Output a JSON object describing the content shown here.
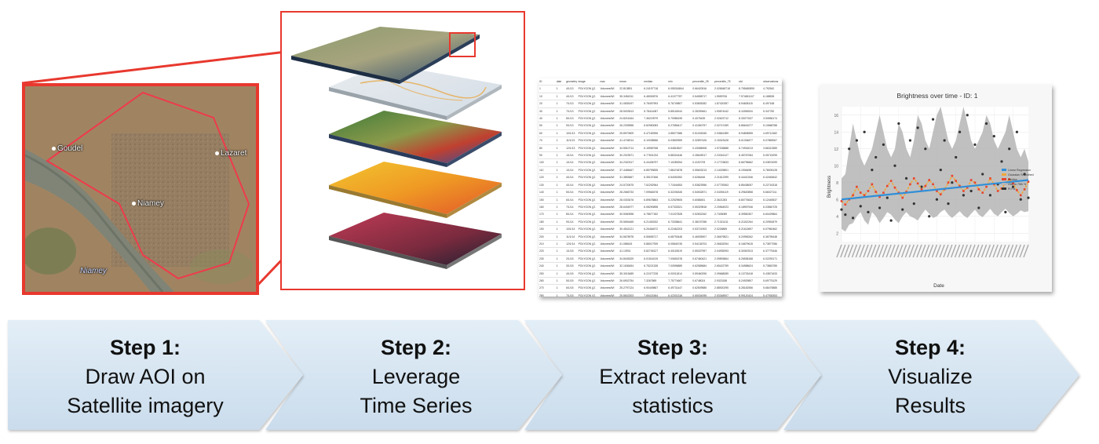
{
  "step1": {
    "map_labels": [
      "Goudel",
      "Lazaret",
      "Niamey",
      "Niamey"
    ],
    "title": "Step 1:",
    "line1": "Draw AOI on",
    "line2": "Satellite imagery"
  },
  "step2": {
    "title": "Step 2:",
    "line1": "Leverage",
    "line2": "Time Series"
  },
  "step3": {
    "title": "Step 3:",
    "line1": "Extract relevant",
    "line2": "statistics",
    "table": {
      "headers": [
        "ID",
        "date",
        "geometry",
        "image",
        "max",
        "mean",
        "median",
        "min",
        "percentile_25",
        "percentile_75",
        "std",
        "observations"
      ],
      "rows": [
        [
          "1",
          "1",
          "4/1/13",
          "POLYGON ((2.",
          "Volumes/Wi",
          "22.813891",
          "6.24197718",
          "6.055316844",
          "0.66420516",
          "2.026548718",
          "8.755480895",
          "4.792542"
        ],
        [
          "10",
          "1",
          "4/1/13",
          "POLYGON ((2.",
          "Volumes/Wi",
          "35.3454311",
          "6.48052876",
          "6.41077787",
          "0.54558717",
          "1.9559706",
          "7.974651107",
          "6.188535"
        ],
        [
          "20",
          "1",
          "7/1/13",
          "POLYGON ((2.",
          "Volumes/Wi",
          "31.0835197",
          "5.78497993",
          "5.76749807",
          "0.53805282",
          "1.87420357",
          "8.94608115",
          "6.497168"
        ],
        [
          "30",
          "1",
          "7/1/13",
          "POLYGON ((2.",
          "Volumes/Wi",
          "28.5003513",
          "5.78414087",
          "5.85116944",
          "0.28259461",
          "1.90874442",
          "8.11596534",
          "5.347782"
        ],
        [
          "40",
          "1",
          "8/1/13",
          "POLYGON ((2.",
          "Volumes/Wi",
          "24.8216164",
          "7.36219979",
          "5.70986195",
          "0.4075439",
          "2.02623712",
          "8.33077637",
          "3.50556174"
        ],
        [
          "50",
          "1",
          "9/1/13",
          "POLYGON ((2.",
          "Volumes/Wi",
          "26.2339558",
          "6.82960083",
          "6.27656417",
          "0.41060757",
          "2.02747459",
          "8.86616277",
          "5.10668788"
        ],
        [
          "60",
          "1",
          "10/1/13",
          "POLYGON ((2.",
          "Volumes/Wi",
          "25.8970509",
          "6.47169396",
          "4.88077686",
          "0.51026345",
          "2.03661389",
          "8.94808555",
          "4.69712482"
        ],
        [
          "70",
          "1",
          "11/1/13",
          "POLYGON ((2.",
          "Volumes/Wi",
          "41.4745014",
          "6.10038566",
          "6.03809359",
          "0.32897426",
          "2.15323428",
          "8.01334877",
          "5.07869067"
        ],
        [
          "80",
          "1",
          "12/1/13",
          "POLYGON ((2.",
          "Volumes/Wi",
          "34.5510714",
          "6.15969768",
          "6.54815547",
          "0.43086908",
          "1.97206888",
          "8.74916013",
          "3.86313389"
        ],
        [
          "90",
          "1",
          "1/1/14",
          "POLYGON ((2.",
          "Volumes/Wi",
          "30.2023571",
          "6.77601234",
          "5.88324446",
          "0.28649017",
          "2.23316127",
          "8.45767084",
          "5.05715295"
        ],
        [
          "100",
          "1",
          "1/1/14",
          "POLYGON ((2.",
          "Volumes/Wi",
          "34.2320317",
          "6.44436797",
          "7.10289254",
          "0.4157078",
          "2.17723833",
          "8.66795662",
          "5.03874099"
        ],
        [
          "110",
          "1",
          "1/1/14",
          "POLYGON ((2.",
          "Volumes/Wi",
          "37.4456467",
          "6.85799835",
          "7.88474878",
          "0.55603213",
          "2.14025801",
          "8.1906498",
          "5.78005128"
        ],
        [
          "120",
          "1",
          "4/1/14",
          "POLYGON ((2.",
          "Volumes/Wi",
          "31.3853667",
          "6.35107466",
          "6.54051552",
          "0.6266446",
          "2.21612399",
          "8.44410346",
          "6.42463642"
        ],
        [
          "130",
          "1",
          "4/1/14",
          "POLYGON ((2.",
          "Volumes/Wi",
          "24.5720675",
          "7.52252964",
          "7.71544553",
          "0.53823956",
          "2.07739363",
          "8.85438057",
          "5.22716318"
        ],
        [
          "140",
          "1",
          "5/1/14",
          "POLYGON ((2.",
          "Volumes/Wi",
          "28.2665733",
          "7.09564578",
          "6.32206345",
          "0.54532871",
          "2.04394119",
          "8.29620858",
          "5.66027111"
        ],
        [
          "150",
          "1",
          "6/1/14",
          "POLYGON ((2.",
          "Volumes/Wi",
          "28.0303476",
          "6.89678863",
          "5.22529505",
          "0.6088451",
          "2.3621283",
          "8.80776632",
          "5.12445537"
        ],
        [
          "160",
          "1",
          "7/1/14",
          "POLYGON ((2.",
          "Volumes/Wi",
          "28.6404977",
          "6.08290898",
          "6.57333321",
          "0.55329818",
          "2.20564923",
          "8.18957946",
          "6.03560725"
        ],
        [
          "170",
          "1",
          "8/1/14",
          "POLYGON ((2.",
          "Volumes/Wi",
          "30.5060598",
          "6.78677182",
          "7.01027828",
          "0.52832262",
          "2.7405089",
          "8.39550307",
          "6.60429864"
        ],
        [
          "180",
          "1",
          "9/1/14",
          "POLYGON ((2.",
          "Volumes/Wi",
          "25.5694465",
          "6.21453332",
          "6.73338641",
          "0.38197058",
          "2.71321411",
          "8.21152264",
          "6.20951879"
        ],
        [
          "190",
          "1",
          "10/1/14",
          "POLYGON ((2.",
          "Volumes/Wi",
          "30.4542121",
          "6.26464672",
          "6.22462203",
          "0.53721903",
          "2.0226869",
          "8.21613697",
          "6.07960462"
        ],
        [
          "200",
          "1",
          "11/1/14",
          "POLYGON ((2.",
          "Volumes/Wi",
          "34.5678978",
          "6.55655717",
          "6.68793448",
          "0.46535907",
          "2.06679821",
          "8.20955262",
          "6.36795448"
        ],
        [
          "210",
          "1",
          "12/1/14",
          "POLYGON ((2.",
          "Volumes/Wi",
          "41.086615",
          "5.88017939",
          "6.05846745",
          "0.54136704",
          "2.06632054",
          "8.16679615",
          "5.73877086"
        ],
        [
          "220",
          "1",
          "1/1/15",
          "POLYGON ((2.",
          "Volumes/Wi",
          "41.13931",
          "5.82745127",
          "6.40115519",
          "0.55337957",
          "2.04935393",
          "8.30367813",
          "6.37779446"
        ],
        [
          "230",
          "1",
          "2/1/15",
          "POLYGON ((2.",
          "Volumes/Wi",
          "34.8045329",
          "6.01516219",
          "7.00651578",
          "0.67460421",
          "2.09893864",
          "8.26538168",
          "6.02293171"
        ],
        [
          "240",
          "1",
          "3/1/15",
          "POLYGON ((2.",
          "Volumes/Wi",
          "32.1636454",
          "6.75221328",
          "7.00596889",
          "0.62585684",
          "2.65422759",
          "8.34988624",
          "5.73863785"
        ],
        [
          "250",
          "1",
          "4/1/15",
          "POLYGON ((2.",
          "Volumes/Wi",
          "35.3015489",
          "6.22477228",
          "6.00011814",
          "0.59460296",
          "2.09668089",
          "8.13733418",
          "5.43871633"
        ],
        [
          "260",
          "1",
          "5/1/15",
          "POLYGON ((2.",
          "Volumes/Wi",
          "26.6902754",
          "7.3267869",
          "7.75774667",
          "0.6748024",
          "2.9323158",
          "8.24929807",
          "5.69775129"
        ],
        [
          "270",
          "1",
          "6/1/15",
          "POLYGON ((2.",
          "Volumes/Wi",
          "25.2797124",
          "6.90449867",
          "6.49731447",
          "0.62509585",
          "2.88920295",
          "8.28182556",
          "5.68475885"
        ],
        [
          "280",
          "1",
          "7/1/15",
          "POLYGON ((2.",
          "Volumes/Wi",
          "25.8602303",
          "7.65421564",
          "6.42301316",
          "0.65034095",
          "2.53348907",
          "8.99120424",
          "5.47935353"
        ],
        [
          "290",
          "1",
          "8/1/15",
          "POLYGON ((2.",
          "Volumes/Wi",
          "25.2744638",
          "6.89315954",
          "6.63095189",
          "0.73160491",
          "2.00746214",
          "8.11039016",
          "5.07336056"
        ]
      ]
    }
  },
  "step4": {
    "title": "Step 4:",
    "line1": "Visualize",
    "line2": "Results",
    "chart_data": {
      "type": "line",
      "title": "Brightness over time - ID: 1",
      "xlabel": "Date",
      "ylabel": "Brightness",
      "ylim": [
        1,
        17
      ],
      "yticks": [
        2,
        4,
        6,
        8,
        10,
        12,
        14,
        16
      ],
      "grid": true,
      "legend_position": "right",
      "legend": [
        "Linear Regression",
        "Gaussian Smoothed",
        "Median",
        "25th to 75th %",
        "Pt Fct"
      ],
      "series": [
        {
          "name": "Median",
          "values": [
            5.8,
            5.4,
            6.0,
            6.5,
            7.5,
            6.8,
            6.5,
            7.0,
            7.8,
            6.9,
            6.3,
            6.8,
            7.6,
            8.2,
            7.4,
            6.8,
            6.2,
            6.9,
            7.8,
            8.5,
            7.9,
            7.2,
            7.6,
            8.3,
            7.8,
            7.0,
            6.6,
            7.2,
            8.0,
            8.8,
            8.2,
            7.6,
            7.0,
            7.4,
            8.3,
            8.0,
            7.2,
            6.8,
            7.5,
            8.5,
            7.8,
            7.0,
            7.3,
            7.9,
            8.4,
            7.9,
            7.1,
            6.5,
            7.2,
            8.1
          ]
        },
        {
          "name": "Pt Fct",
          "values": [
            4.8,
            4.2,
            12.0,
            3.8,
            13.0,
            5.2,
            14.0,
            4.5,
            9.5,
            11.0,
            5.0,
            12.5,
            6.2,
            3.5,
            10.0,
            15.0,
            4.8,
            8.5,
            13.0,
            5.5,
            14.5,
            7.5,
            12.0,
            4.0,
            15.5,
            6.0,
            9.5,
            13.0,
            5.5,
            8.0,
            11.0,
            14.0,
            6.5,
            16.0,
            7.0,
            12.5,
            5.0,
            9.0,
            15.0,
            6.5,
            13.5,
            7.8,
            10.5,
            4.5,
            12.0,
            7.5,
            14.0,
            6.0,
            9.0,
            6.2
          ]
        },
        {
          "name": "25th to 75th %",
          "upper": [
            8.5,
            9,
            12,
            15,
            13,
            11,
            10,
            11,
            12,
            14,
            16,
            14,
            12,
            11,
            12,
            15,
            14,
            12,
            11,
            13,
            16,
            15,
            13,
            12,
            14,
            16,
            17,
            15,
            13,
            12,
            13,
            15,
            17,
            15,
            13,
            12,
            13,
            14,
            16,
            15,
            13,
            12,
            13,
            14,
            16,
            14,
            12,
            11,
            12,
            10.5
          ],
          "lower": [
            2.5,
            2.2,
            3,
            3.2,
            4,
            4.5,
            3.5,
            3,
            4.5,
            4,
            3.2,
            3.8,
            4.5,
            4.2,
            3.6,
            3.2,
            4,
            4.5,
            4,
            3.8,
            3.5,
            4.2,
            4.8,
            4.3,
            3.8,
            4,
            4.5,
            4.8,
            4.2,
            3.8,
            4.2,
            4.6,
            4.1,
            3.8,
            4.3,
            4.8,
            4.2,
            3.9,
            4.4,
            4.9,
            4.3,
            4,
            4.5,
            4.9,
            4.4,
            4,
            4.3,
            4.7,
            4.5,
            4.6
          ]
        },
        {
          "name": "Linear Regression",
          "values": [
            6.0,
            8.3
          ]
        }
      ],
      "colors": {
        "band": "#b5b5b5",
        "median": "#e8432e",
        "smoothed": "#f0a73a",
        "regression": "#2f8fd8",
        "points": "#333333"
      }
    }
  },
  "colors": {
    "aoi_border": "#e8382e",
    "chevron_fill": "#dbe8f3",
    "chevron_fill_dark": "#c7d9ea"
  }
}
